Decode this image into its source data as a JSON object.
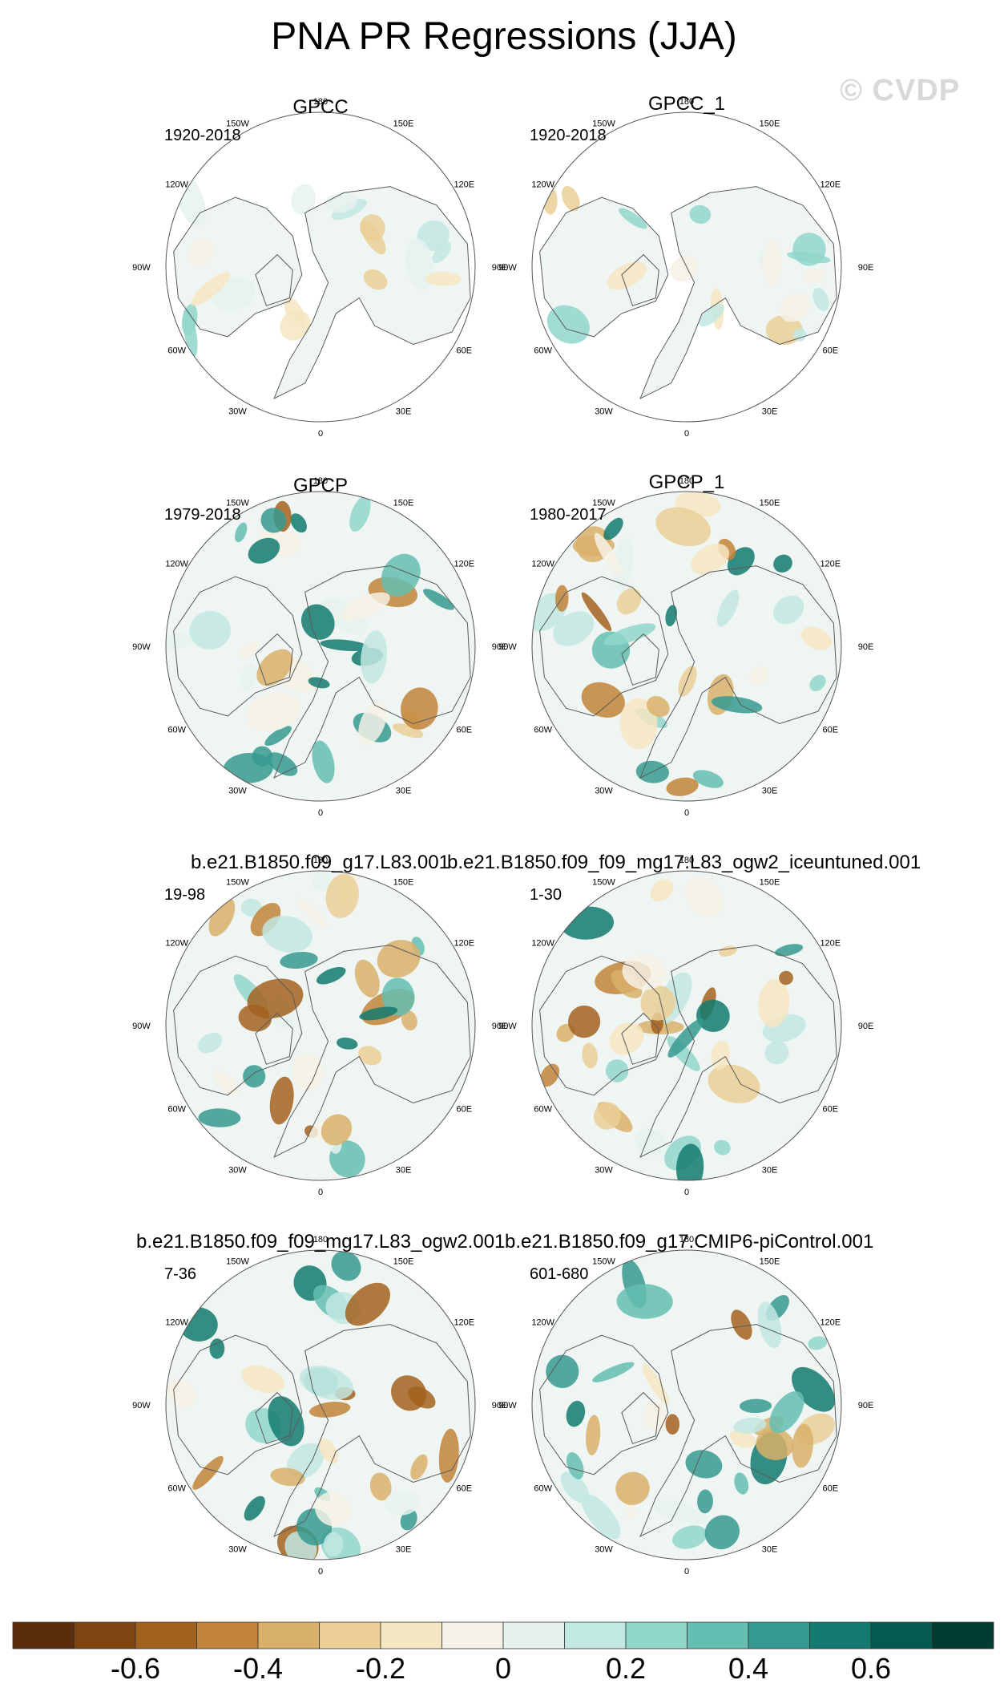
{
  "title": "PNA PR Regressions (JJA)",
  "watermark": "© CVDP",
  "lon_labels": [
    "180",
    "150E",
    "120E",
    "90E",
    "60E",
    "30E",
    "0",
    "30W",
    "60W",
    "90W",
    "120W",
    "150W"
  ],
  "panels": [
    {
      "title": "GPCC",
      "period": "1920-2018",
      "coverage": "land"
    },
    {
      "title": "GPCC_1",
      "period": "1920-2018",
      "coverage": "land"
    },
    {
      "title": "GPCP",
      "period": "1979-2018",
      "coverage": "global"
    },
    {
      "title": "GPCP_1",
      "period": "1980-2017",
      "coverage": "global"
    },
    {
      "title": "b.e21.B1850.f09_g17.L83.001",
      "period": "19-98",
      "coverage": "global"
    },
    {
      "title": "b.e21.B1850.f09_f09_mg17.L83_ogw2_iceuntuned.001",
      "period": "1-30",
      "coverage": "global"
    },
    {
      "title": "b.e21.B1850.f09_f09_mg17.L83_ogw2.001",
      "period": "7-36",
      "coverage": "global"
    },
    {
      "title": "b.e21.B1850.f09_g17.CMIP6-piControl.001",
      "period": "601-680",
      "coverage": "global"
    }
  ],
  "colorbar": {
    "colors": [
      "#5a2d0c",
      "#7e4510",
      "#a2621e",
      "#c2843a",
      "#d9b06a",
      "#ebcf96",
      "#f6e6c2",
      "#f6f1e6",
      "#e6f2f0",
      "#c2e8e2",
      "#90d6cb",
      "#64beb2",
      "#369a90",
      "#137a70",
      "#045a50",
      "#003c30"
    ],
    "tick_labels": [
      "-0.6",
      "-0.4",
      "-0.2",
      "0",
      "0.2",
      "0.4",
      "0.6"
    ]
  }
}
